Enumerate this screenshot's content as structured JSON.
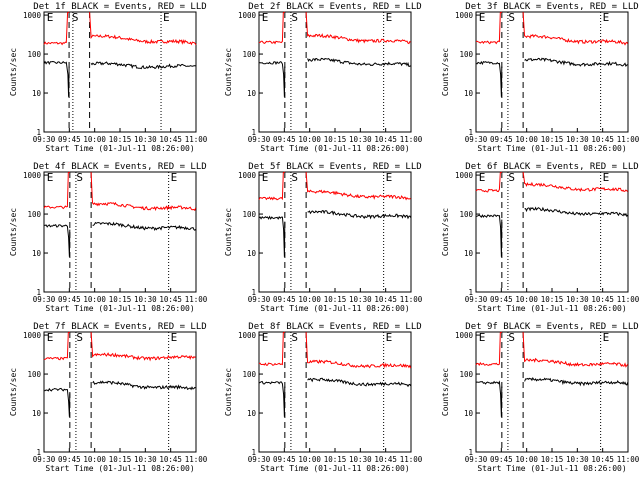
{
  "figure": {
    "background": "#ffffff"
  },
  "chart_data": [
    {
      "type": "line",
      "title": "Det 1f BLACK = Events, RED = LLD",
      "xlabel": "Start Time (01-Jul-11 08:26:00)",
      "ylabel": "Counts/sec",
      "x_ticks": [
        "09:30",
        "09:45",
        "10:00",
        "10:15",
        "10:30",
        "10:45",
        "11:00"
      ],
      "y_ticks": [
        "1",
        "10",
        "100",
        "1000"
      ],
      "y_scale": "log",
      "ylim": [
        1,
        1200
      ],
      "xlim_minutes": [
        0,
        100
      ],
      "markers": [
        {
          "label": "E",
          "t": 0.5
        },
        {
          "label": "S",
          "t": 17
        },
        {
          "label": "E",
          "t": 77
        }
      ],
      "dashed_lines": [
        16.5,
        30
      ],
      "dotted_lines": [
        19,
        77
      ],
      "gap": [
        17,
        30
      ],
      "series": [
        {
          "name": "LLD",
          "color": "#ff0000",
          "pre": 190,
          "post": "declining 280 to 180",
          "spike_peak": 1200
        },
        {
          "name": "Events",
          "color": "#000000",
          "pre": 60,
          "post": "~55 to 45",
          "dip_min": 8
        }
      ]
    },
    {
      "type": "line",
      "title": "Det 2f BLACK = Events, RED = LLD",
      "xlabel": "Start Time (01-Jul-11 08:26:00)",
      "ylabel": "Counts/sec",
      "x_ticks": [
        "09:30",
        "09:45",
        "10:00",
        "10:15",
        "10:30",
        "10:45",
        "11:00"
      ],
      "y_ticks": [
        "1",
        "10",
        "100",
        "1000"
      ],
      "y_scale": "log",
      "ylim": [
        1,
        1200
      ],
      "markers": [
        {
          "label": "E",
          "t": 0.5
        },
        {
          "label": "S",
          "t": 20
        },
        {
          "label": "E",
          "t": 82
        }
      ],
      "dashed_lines": [
        17,
        31
      ],
      "dotted_lines": [
        21,
        82
      ],
      "series": [
        {
          "name": "LLD",
          "color": "#ff0000",
          "pre": 200,
          "post": "declining 290 to 190"
        },
        {
          "name": "Events",
          "color": "#000000",
          "pre": 60,
          "post": "~70 to 50"
        }
      ]
    },
    {
      "type": "line",
      "title": "Det 3f BLACK = Events, RED = LLD",
      "xlabel": "Start Time (01-Jul-11 08:26:00)",
      "ylabel": "Counts/sec",
      "x_ticks": [
        "09:30",
        "09:45",
        "10:00",
        "10:15",
        "10:30",
        "10:45",
        "11:00"
      ],
      "y_ticks": [
        "1",
        "10",
        "100",
        "1000"
      ],
      "y_scale": "log",
      "ylim": [
        1,
        1200
      ],
      "markers": [
        {
          "label": "E",
          "t": 0.5
        },
        {
          "label": "S",
          "t": 20
        },
        {
          "label": "E",
          "t": 82
        }
      ],
      "dashed_lines": [
        17,
        31
      ],
      "dotted_lines": [
        21,
        82
      ],
      "series": [
        {
          "name": "LLD",
          "color": "#ff0000",
          "pre": 200,
          "post": "declining 280 to 180"
        },
        {
          "name": "Events",
          "color": "#000000",
          "pre": 60,
          "post": "~70 to 50"
        }
      ]
    },
    {
      "type": "line",
      "title": "Det 4f BLACK = Events, RED = LLD",
      "xlabel": "Start Time (01-Jul-11 08:26:00)",
      "ylabel": "Counts/sec",
      "x_ticks": [
        "09:30",
        "09:45",
        "10:00",
        "10:15",
        "10:30",
        "10:45",
        "11:00"
      ],
      "y_ticks": [
        "1",
        "10",
        "100",
        "1000"
      ],
      "y_scale": "log",
      "ylim": [
        1,
        1200
      ],
      "markers": [
        {
          "label": "E",
          "t": 0.5
        },
        {
          "label": "S",
          "t": 20
        },
        {
          "label": "E",
          "t": 82
        }
      ],
      "dashed_lines": [
        17,
        31
      ],
      "dotted_lines": [
        21,
        82
      ],
      "series": [
        {
          "name": "LLD",
          "color": "#ff0000",
          "pre": 150,
          "post": "~180 to 130"
        },
        {
          "name": "Events",
          "color": "#000000",
          "pre": 50,
          "post": "~55 to 40"
        }
      ]
    },
    {
      "type": "line",
      "title": "Det 5f BLACK = Events, RED = LLD",
      "xlabel": "Start Time (01-Jul-11 08:26:00)",
      "ylabel": "Counts/sec",
      "x_ticks": [
        "09:30",
        "09:45",
        "10:00",
        "10:15",
        "10:30",
        "10:45",
        "11:00"
      ],
      "y_ticks": [
        "1",
        "10",
        "100",
        "1000"
      ],
      "y_scale": "log",
      "ylim": [
        1,
        1200
      ],
      "markers": [
        {
          "label": "E",
          "t": 0.5
        },
        {
          "label": "S",
          "t": 20
        },
        {
          "label": "E",
          "t": 82
        }
      ],
      "dashed_lines": [
        17,
        31
      ],
      "dotted_lines": [
        21,
        82
      ],
      "series": [
        {
          "name": "LLD",
          "color": "#ff0000",
          "pre": 250,
          "post": "declining 370 to 240"
        },
        {
          "name": "Events",
          "color": "#000000",
          "pre": 80,
          "post": "~110 to 80"
        }
      ]
    },
    {
      "type": "line",
      "title": "Det 6f BLACK = Events, RED = LLD",
      "xlabel": "Start Time (01-Jul-11 08:26:00)",
      "ylabel": "Counts/sec",
      "x_ticks": [
        "09:30",
        "09:45",
        "10:00",
        "10:15",
        "10:30",
        "10:45",
        "11:00"
      ],
      "y_ticks": [
        "1",
        "10",
        "100",
        "1000"
      ],
      "y_scale": "log",
      "ylim": [
        1,
        1200
      ],
      "markers": [
        {
          "label": "E",
          "t": 0.5
        },
        {
          "label": "S",
          "t": 20
        },
        {
          "label": "E",
          "t": 82
        }
      ],
      "dashed_lines": [
        17,
        31
      ],
      "dotted_lines": [
        21,
        82
      ],
      "series": [
        {
          "name": "LLD",
          "color": "#ff0000",
          "pre": 400,
          "post": "declining 560 to 380"
        },
        {
          "name": "Events",
          "color": "#000000",
          "pre": 90,
          "post": "~130 to 90"
        }
      ]
    },
    {
      "type": "line",
      "title": "Det 7f BLACK = Events, RED = LLD",
      "xlabel": "Start Time (01-Jul-11 08:26:00)",
      "ylabel": "Counts/sec",
      "x_ticks": [
        "09:30",
        "09:45",
        "10:00",
        "10:15",
        "10:30",
        "10:45",
        "11:00"
      ],
      "y_ticks": [
        "1",
        "10",
        "100",
        "1000"
      ],
      "y_scale": "log",
      "ylim": [
        1,
        1200
      ],
      "markers": [
        {
          "label": "E",
          "t": 0.5
        },
        {
          "label": "S",
          "t": 20
        },
        {
          "label": "E",
          "t": 82
        }
      ],
      "dashed_lines": [
        17,
        31
      ],
      "dotted_lines": [
        21,
        82
      ],
      "series": [
        {
          "name": "LLD",
          "color": "#ff0000",
          "pre": 250,
          "post": "~300 to 250"
        },
        {
          "name": "Events",
          "color": "#000000",
          "pre": 40,
          "post": "~60 to 40"
        }
      ]
    },
    {
      "type": "line",
      "title": "Det 8f BLACK = Events, RED = LLD",
      "xlabel": "Start Time (01-Jul-11 08:26:00)",
      "ylabel": "Counts/sec",
      "x_ticks": [
        "09:30",
        "09:45",
        "10:00",
        "10:15",
        "10:30",
        "10:45",
        "11:00"
      ],
      "y_ticks": [
        "1",
        "10",
        "100",
        "1000"
      ],
      "y_scale": "log",
      "ylim": [
        1,
        1200
      ],
      "markers": [
        {
          "label": "E",
          "t": 0.5
        },
        {
          "label": "S",
          "t": 20
        },
        {
          "label": "E",
          "t": 82
        }
      ],
      "dashed_lines": [
        17,
        31
      ],
      "dotted_lines": [
        21,
        82
      ],
      "series": [
        {
          "name": "LLD",
          "color": "#ff0000",
          "pre": 180,
          "post": "~200 to 150"
        },
        {
          "name": "Events",
          "color": "#000000",
          "pre": 60,
          "post": "~70 to 50"
        }
      ]
    },
    {
      "type": "line",
      "title": "Det 9f BLACK = Events, RED = LLD",
      "xlabel": "Start Time (01-Jul-11 08:26:00)",
      "ylabel": "Counts/sec",
      "x_ticks": [
        "09:30",
        "09:45",
        "10:00",
        "10:15",
        "10:30",
        "10:45",
        "11:00"
      ],
      "y_ticks": [
        "1",
        "10",
        "100",
        "1000"
      ],
      "y_scale": "log",
      "ylim": [
        1,
        1200
      ],
      "markers": [
        {
          "label": "E",
          "t": 0.5
        },
        {
          "label": "S",
          "t": 20
        },
        {
          "label": "E",
          "t": 82
        }
      ],
      "dashed_lines": [
        17,
        31
      ],
      "dotted_lines": [
        21,
        82
      ],
      "series": [
        {
          "name": "LLD",
          "color": "#ff0000",
          "pre": 180,
          "post": "~220 to 160"
        },
        {
          "name": "Events",
          "color": "#000000",
          "pre": 60,
          "post": "~70 to 55"
        }
      ]
    }
  ]
}
